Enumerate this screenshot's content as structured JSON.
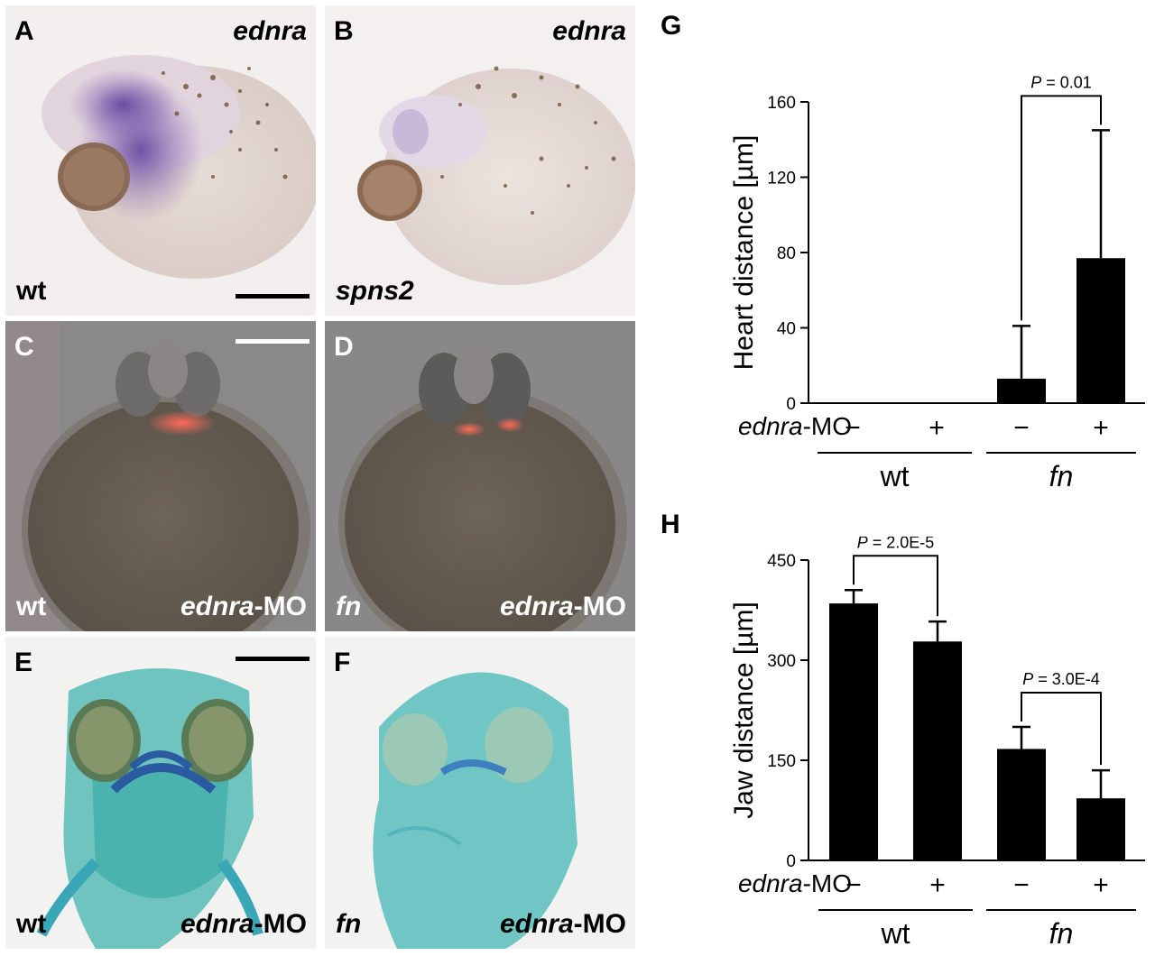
{
  "panels": {
    "A": {
      "letter": "A",
      "gene": "ednra",
      "genotype": "wt"
    },
    "B": {
      "letter": "B",
      "gene": "ednra",
      "genotype": "spns2"
    },
    "C": {
      "letter": "C",
      "genotype": "wt",
      "treatment_italic": "ednra",
      "treatment_suffix": "-MO"
    },
    "D": {
      "letter": "D",
      "genotype": "fn",
      "treatment_italic": "ednra",
      "treatment_suffix": "-MO"
    },
    "E": {
      "letter": "E",
      "genotype": "wt",
      "treatment_italic": "ednra",
      "treatment_suffix": "-MO"
    },
    "F": {
      "letter": "F",
      "genotype": "fn",
      "treatment_italic": "ednra",
      "treatment_suffix": "-MO"
    }
  },
  "chart_data": [
    {
      "panel": "G",
      "type": "bar",
      "ylabel": "Heart distance [µm]",
      "ylim": [
        0,
        160
      ],
      "yticks": [
        0,
        40,
        80,
        120,
        160
      ],
      "treatment_row_label_italic": "ednra",
      "treatment_row_label_suffix": "-MO",
      "categories": [
        "−",
        "+",
        "−",
        "+"
      ],
      "groups": [
        {
          "label": "wt",
          "italic": false
        },
        {
          "label": "fn",
          "italic": true
        }
      ],
      "values": [
        0,
        0,
        13,
        77
      ],
      "errors": [
        0,
        0,
        28,
        68
      ],
      "significance": [
        {
          "between": [
            2,
            3
          ],
          "p_italic": "P",
          "text": " = 0.01"
        }
      ]
    },
    {
      "panel": "H",
      "type": "bar",
      "ylabel": "Jaw distance [µm]",
      "ylim": [
        0,
        450
      ],
      "yticks": [
        0,
        150,
        300,
        450
      ],
      "treatment_row_label_italic": "ednra",
      "treatment_row_label_suffix": "-MO",
      "categories": [
        "−",
        "+",
        "−",
        "+"
      ],
      "groups": [
        {
          "label": "wt",
          "italic": false
        },
        {
          "label": "fn",
          "italic": true
        }
      ],
      "values": [
        385,
        328,
        167,
        93
      ],
      "errors": [
        20,
        30,
        33,
        42
      ],
      "significance": [
        {
          "between": [
            0,
            1
          ],
          "p_italic": "P",
          "text": " = 2.0E-5"
        },
        {
          "between": [
            2,
            3
          ],
          "p_italic": "P",
          "text": " = 3.0E-4"
        }
      ]
    }
  ],
  "colors": {
    "ish_bg": "#f3efee",
    "ish_stain": "#6a4a9a",
    "pigment": "#6b4a2a",
    "fluor_bg": "#8a8888",
    "heart": "#ff5a4a",
    "alcian": "#3fb8b0"
  }
}
